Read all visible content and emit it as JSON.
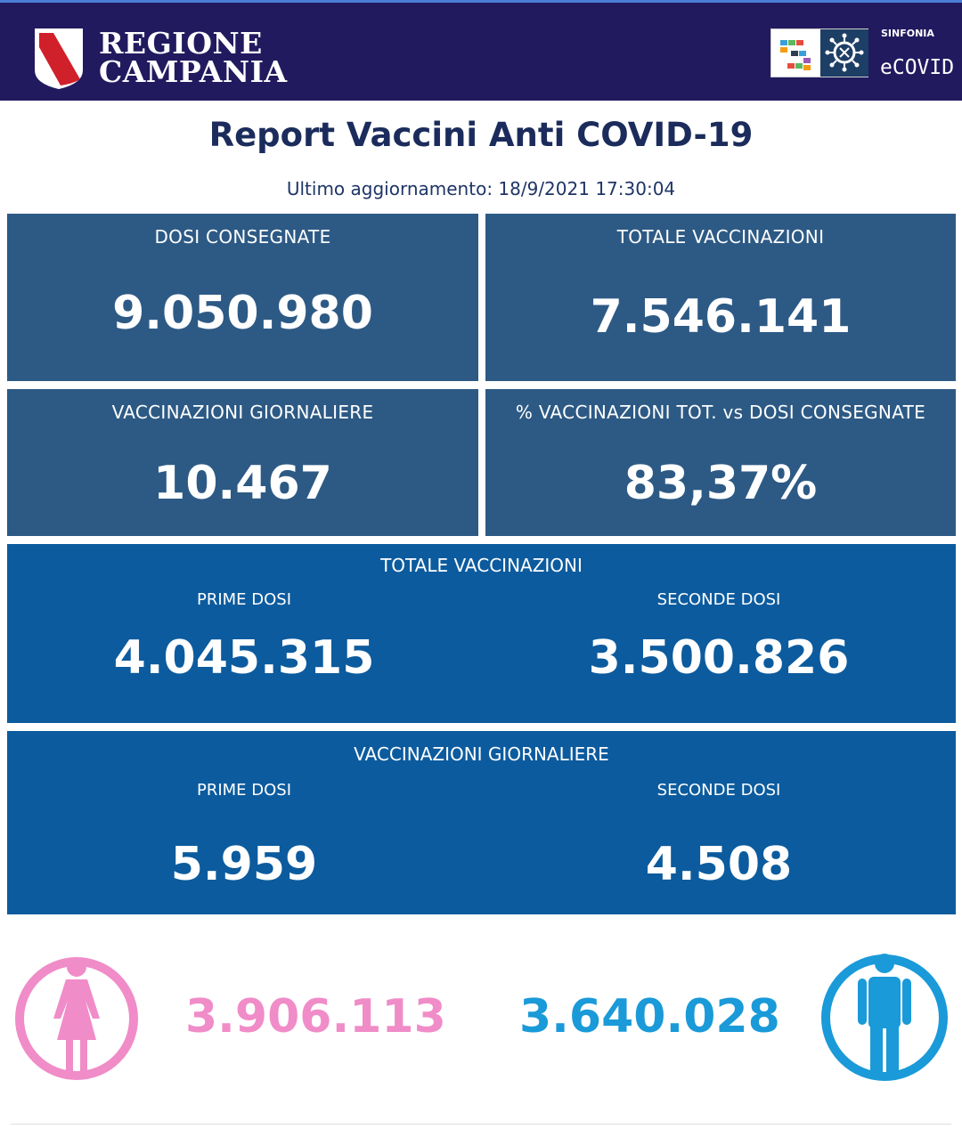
{
  "header": {
    "region_line1": "REGIONE",
    "region_line2": "CAMPANIA",
    "brand_small": "SINFONIA",
    "brand_large": "eCOVID",
    "bg_color": "#221a5f"
  },
  "report": {
    "title": "Report Vaccini Anti COVID-19",
    "updated": "Ultimo aggiornamento: 18/9/2021  17:30:04"
  },
  "stats": {
    "dosi_consegnate": {
      "label": "DOSI  CONSEGNATE",
      "value": "9.050.980"
    },
    "totale_vaccinazioni": {
      "label": "TOTALE VACCINAZIONI",
      "value": "7.546.141"
    },
    "vaccinazioni_giornaliere": {
      "label": "VACCINAZIONI GIORNALIERE",
      "value": "10.467"
    },
    "percentuale": {
      "label": "% VACCINAZIONI TOT. vs DOSI CONSEGNATE",
      "value": "83,37%"
    }
  },
  "totale_split": {
    "title": "TOTALE VACCINAZIONI",
    "prime_label": "PRIME DOSI",
    "prime_value": "4.045.315",
    "seconde_label": "SECONDE DOSI",
    "seconde_value": "3.500.826"
  },
  "giornaliere_split": {
    "title": "VACCINAZIONI GIORNALIERE",
    "prime_label": "PRIME DOSI",
    "prime_value": "5.959",
    "seconde_label": "SECONDE DOSI",
    "seconde_value": "4.508"
  },
  "gender": {
    "female_icon": "female-person-icon",
    "female_value": "3.906.113",
    "female_color": "#f08cc8",
    "male_icon": "male-person-icon",
    "male_value": "3.640.028",
    "male_color": "#1a9ad8"
  },
  "colors": {
    "box_dark": "#2d5a85",
    "box_blue": "#0c5b9e",
    "title": "#1b2c5c"
  }
}
